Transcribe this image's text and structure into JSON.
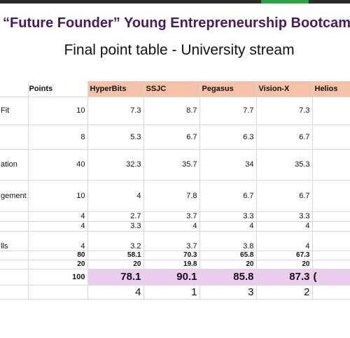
{
  "title": "“Future Founder” Young Entrepreneurship Bootcam",
  "subtitle": "Final point table - University stream",
  "table": {
    "headers": {
      "points": "Points",
      "teams": [
        "HyperBits",
        "SSJC",
        "Pegasus",
        "Vision-X",
        "Helios"
      ]
    },
    "rows": [
      {
        "label": "Fit",
        "points": "10",
        "scores": [
          "7.3",
          "8.7",
          "7.7",
          "7.3",
          ""
        ]
      },
      {
        "label": "",
        "points": "8",
        "scores": [
          "5.3",
          "6.7",
          "6.3",
          "6.7",
          ""
        ]
      },
      {
        "label": "ation",
        "points": "40",
        "scores": [
          "32.3",
          "35.7",
          "34",
          "35.3",
          ""
        ]
      },
      {
        "label": "gement",
        "points": "10",
        "scores": [
          "4",
          "7.8",
          "6.7",
          "6.7",
          ""
        ]
      },
      {
        "label": "",
        "points": "4",
        "scores": [
          "2.7",
          "3.7",
          "3.3",
          "3.3",
          ""
        ]
      },
      {
        "label": "",
        "points": "4",
        "scores": [
          "3.3",
          "4",
          "4",
          "4",
          ""
        ]
      },
      {
        "label": "lls",
        "points": "4",
        "scores": [
          "3.2",
          "3.7",
          "3.8",
          "4",
          ""
        ]
      },
      {
        "label": "",
        "points": "80",
        "scores": [
          "58.1",
          "70.3",
          "65.8",
          "67.3",
          ""
        ]
      },
      {
        "label": "",
        "points": "20",
        "scores": [
          "20",
          "19.8",
          "20",
          "20",
          ""
        ]
      }
    ],
    "final": {
      "points": "100",
      "scores": [
        "78.1",
        "90.1",
        "85.8",
        "87.3",
        "("
      ]
    },
    "rank": [
      "4",
      "1",
      "3",
      "2",
      ""
    ]
  }
}
